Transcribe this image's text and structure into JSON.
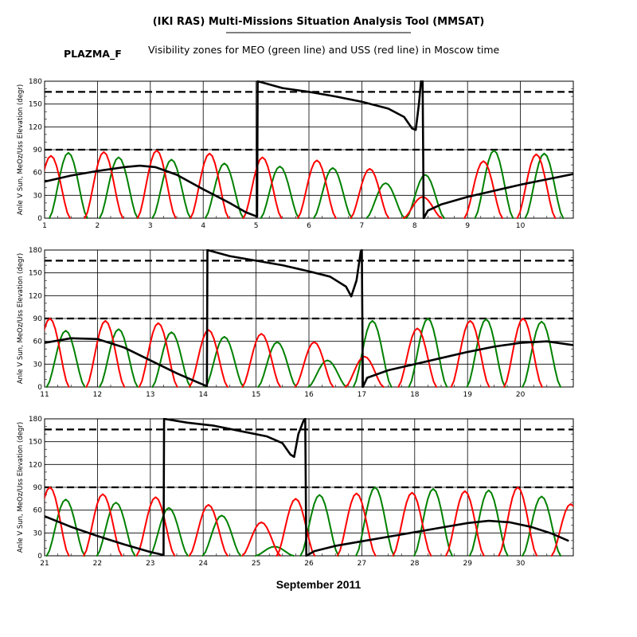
{
  "header": {
    "title": "(IKI RAS) Multi-Missions Situation Analysis Tool (MMSAT)",
    "mission": "PLAZMA_F",
    "subtitle": "Visibility zones for MEO (green line) and USS (red line) in Moscow time"
  },
  "footer": {
    "xlabel": "September 2011"
  },
  "colors": {
    "meo": "#008000",
    "uss": "#ff0000",
    "sun_angle": "#000000",
    "grid": "#000000"
  },
  "chart_data": [
    {
      "type": "line",
      "ylabel": "Anle V Sun, MeOz/Uss Elevation (degr)",
      "xlim": [
        1,
        11
      ],
      "ylim": [
        0,
        180
      ],
      "x_ticks": [
        1,
        2,
        3,
        4,
        5,
        6,
        7,
        8,
        9,
        10
      ],
      "y_ticks": [
        0,
        30,
        60,
        90,
        120,
        150,
        180
      ],
      "thresholds": [
        90,
        166
      ],
      "grid": true,
      "series": [
        {
          "key": "sun",
          "points": [
            [
              1,
              48
            ],
            [
              1.5,
              56
            ],
            [
              2,
              62
            ],
            [
              2.5,
              67
            ],
            [
              2.8,
              69
            ],
            [
              3.1,
              67
            ],
            [
              3.5,
              57
            ],
            [
              4,
              38
            ],
            [
              4.5,
              20
            ],
            [
              4.8,
              8
            ],
            [
              5.02,
              2
            ],
            [
              5.03,
              180
            ],
            [
              5.5,
              171
            ],
            [
              6,
              166
            ],
            [
              6.5,
              160
            ],
            [
              7,
              153
            ],
            [
              7.5,
              144
            ],
            [
              7.8,
              133
            ],
            [
              7.95,
              118
            ],
            [
              8.02,
              116
            ],
            [
              8.08,
              150
            ],
            [
              8.12,
              180
            ],
            [
              8.15,
              180
            ],
            [
              8.17,
              0
            ],
            [
              8.25,
              10
            ],
            [
              8.5,
              18
            ],
            [
              9,
              28
            ],
            [
              9.5,
              36
            ],
            [
              10,
              44
            ],
            [
              10.5,
              51
            ],
            [
              11,
              58
            ]
          ]
        },
        {
          "key": "uss",
          "peaks": [
            [
              1.12,
              82
            ],
            [
              2.12,
              87
            ],
            [
              3.12,
              89
            ],
            [
              4.12,
              85
            ],
            [
              5.12,
              80
            ],
            [
              6.15,
              76
            ],
            [
              7.15,
              65
            ],
            [
              8.15,
              28
            ],
            [
              9.3,
              75
            ],
            [
              10.3,
              84
            ]
          ]
        },
        {
          "key": "meo",
          "peaks": [
            [
              1.45,
              86
            ],
            [
              2.4,
              80
            ],
            [
              3.4,
              77
            ],
            [
              4.4,
              72
            ],
            [
              5.45,
              68
            ],
            [
              6.45,
              66
            ],
            [
              7.45,
              46
            ],
            [
              8.2,
              57
            ],
            [
              9.5,
              89
            ],
            [
              10.45,
              85
            ]
          ]
        }
      ]
    },
    {
      "type": "line",
      "ylabel": "Anle V Sun, MeOz/Uss Elevation (degr)",
      "xlim": [
        11,
        21
      ],
      "ylim": [
        0,
        180
      ],
      "x_ticks": [
        11,
        12,
        13,
        14,
        15,
        16,
        17,
        18,
        19,
        20
      ],
      "y_ticks": [
        0,
        30,
        60,
        90,
        120,
        150,
        180
      ],
      "thresholds": [
        90,
        166
      ],
      "grid": true,
      "series": [
        {
          "key": "sun",
          "points": [
            [
              11,
              58
            ],
            [
              11.5,
              64
            ],
            [
              12,
              63
            ],
            [
              12.5,
              52
            ],
            [
              13,
              35
            ],
            [
              13.5,
              18
            ],
            [
              13.9,
              6
            ],
            [
              14.07,
              1
            ],
            [
              14.08,
              180
            ],
            [
              14.5,
              172
            ],
            [
              15,
              166
            ],
            [
              15.5,
              160
            ],
            [
              16,
              152
            ],
            [
              16.4,
              145
            ],
            [
              16.7,
              132
            ],
            [
              16.8,
              119
            ],
            [
              16.9,
              140
            ],
            [
              16.98,
              178
            ],
            [
              17,
              180
            ],
            [
              17.02,
              0
            ],
            [
              17.1,
              12
            ],
            [
              17.5,
              22
            ],
            [
              18,
              30
            ],
            [
              18.5,
              38
            ],
            [
              19,
              46
            ],
            [
              19.5,
              53
            ],
            [
              20,
              58
            ],
            [
              20.5,
              60
            ],
            [
              21,
              55
            ]
          ]
        },
        {
          "key": "uss",
          "peaks": [
            [
              11.1,
              90
            ],
            [
              12.15,
              87
            ],
            [
              13.15,
              84
            ],
            [
              14.1,
              75
            ],
            [
              15.1,
              70
            ],
            [
              16.1,
              59
            ],
            [
              17.05,
              40
            ],
            [
              18.05,
              77
            ],
            [
              19.05,
              87
            ],
            [
              20.05,
              90
            ]
          ]
        },
        {
          "key": "meo",
          "peaks": [
            [
              11.4,
              74
            ],
            [
              12.4,
              76
            ],
            [
              13.4,
              72
            ],
            [
              14.4,
              66
            ],
            [
              15.4,
              59
            ],
            [
              16.35,
              35
            ],
            [
              17.2,
              87
            ],
            [
              18.25,
              90
            ],
            [
              19.35,
              89
            ],
            [
              20.4,
              86
            ]
          ]
        }
      ]
    },
    {
      "type": "line",
      "ylabel": "Anle V Sun, MeOz/Uss Elevation (degr)",
      "xlim": [
        21,
        31
      ],
      "ylim": [
        0,
        180
      ],
      "x_ticks": [
        21,
        22,
        23,
        24,
        25,
        26,
        27,
        28,
        29,
        30
      ],
      "y_ticks": [
        0,
        30,
        60,
        90,
        120,
        150,
        180
      ],
      "thresholds": [
        90,
        166
      ],
      "grid": true,
      "series": [
        {
          "key": "sun",
          "points": [
            [
              21,
              52
            ],
            [
              21.5,
              38
            ],
            [
              22,
              26
            ],
            [
              22.5,
              15
            ],
            [
              23,
              5
            ],
            [
              23.25,
              1
            ],
            [
              23.26,
              180
            ],
            [
              23.7,
              175
            ],
            [
              24.2,
              171
            ],
            [
              24.7,
              164
            ],
            [
              25.2,
              157
            ],
            [
              25.5,
              148
            ],
            [
              25.65,
              133
            ],
            [
              25.72,
              130
            ],
            [
              25.8,
              160
            ],
            [
              25.9,
              178
            ],
            [
              25.93,
              180
            ],
            [
              25.95,
              0
            ],
            [
              26.1,
              6
            ],
            [
              26.5,
              13
            ],
            [
              27,
              19
            ],
            [
              27.5,
              25
            ],
            [
              28,
              31
            ],
            [
              28.5,
              37
            ],
            [
              29,
              43
            ],
            [
              29.4,
              46
            ],
            [
              29.8,
              44
            ],
            [
              30.2,
              38
            ],
            [
              30.6,
              29
            ],
            [
              30.9,
              20
            ]
          ]
        },
        {
          "key": "uss",
          "peaks": [
            [
              21.1,
              90
            ],
            [
              22.1,
              81
            ],
            [
              23.1,
              77
            ],
            [
              24.1,
              67
            ],
            [
              25.1,
              44
            ],
            [
              25.75,
              75
            ],
            [
              26.9,
              82
            ],
            [
              27.95,
              83
            ],
            [
              28.95,
              85
            ],
            [
              29.95,
              90
            ],
            [
              30.95,
              68
            ]
          ]
        },
        {
          "key": "meo",
          "peaks": [
            [
              21.4,
              74
            ],
            [
              22.35,
              70
            ],
            [
              23.35,
              63
            ],
            [
              24.35,
              53
            ],
            [
              25.35,
              12
            ],
            [
              26.2,
              80
            ],
            [
              27.25,
              90
            ],
            [
              28.35,
              88
            ],
            [
              29.4,
              86
            ],
            [
              30.4,
              78
            ]
          ]
        }
      ]
    }
  ]
}
